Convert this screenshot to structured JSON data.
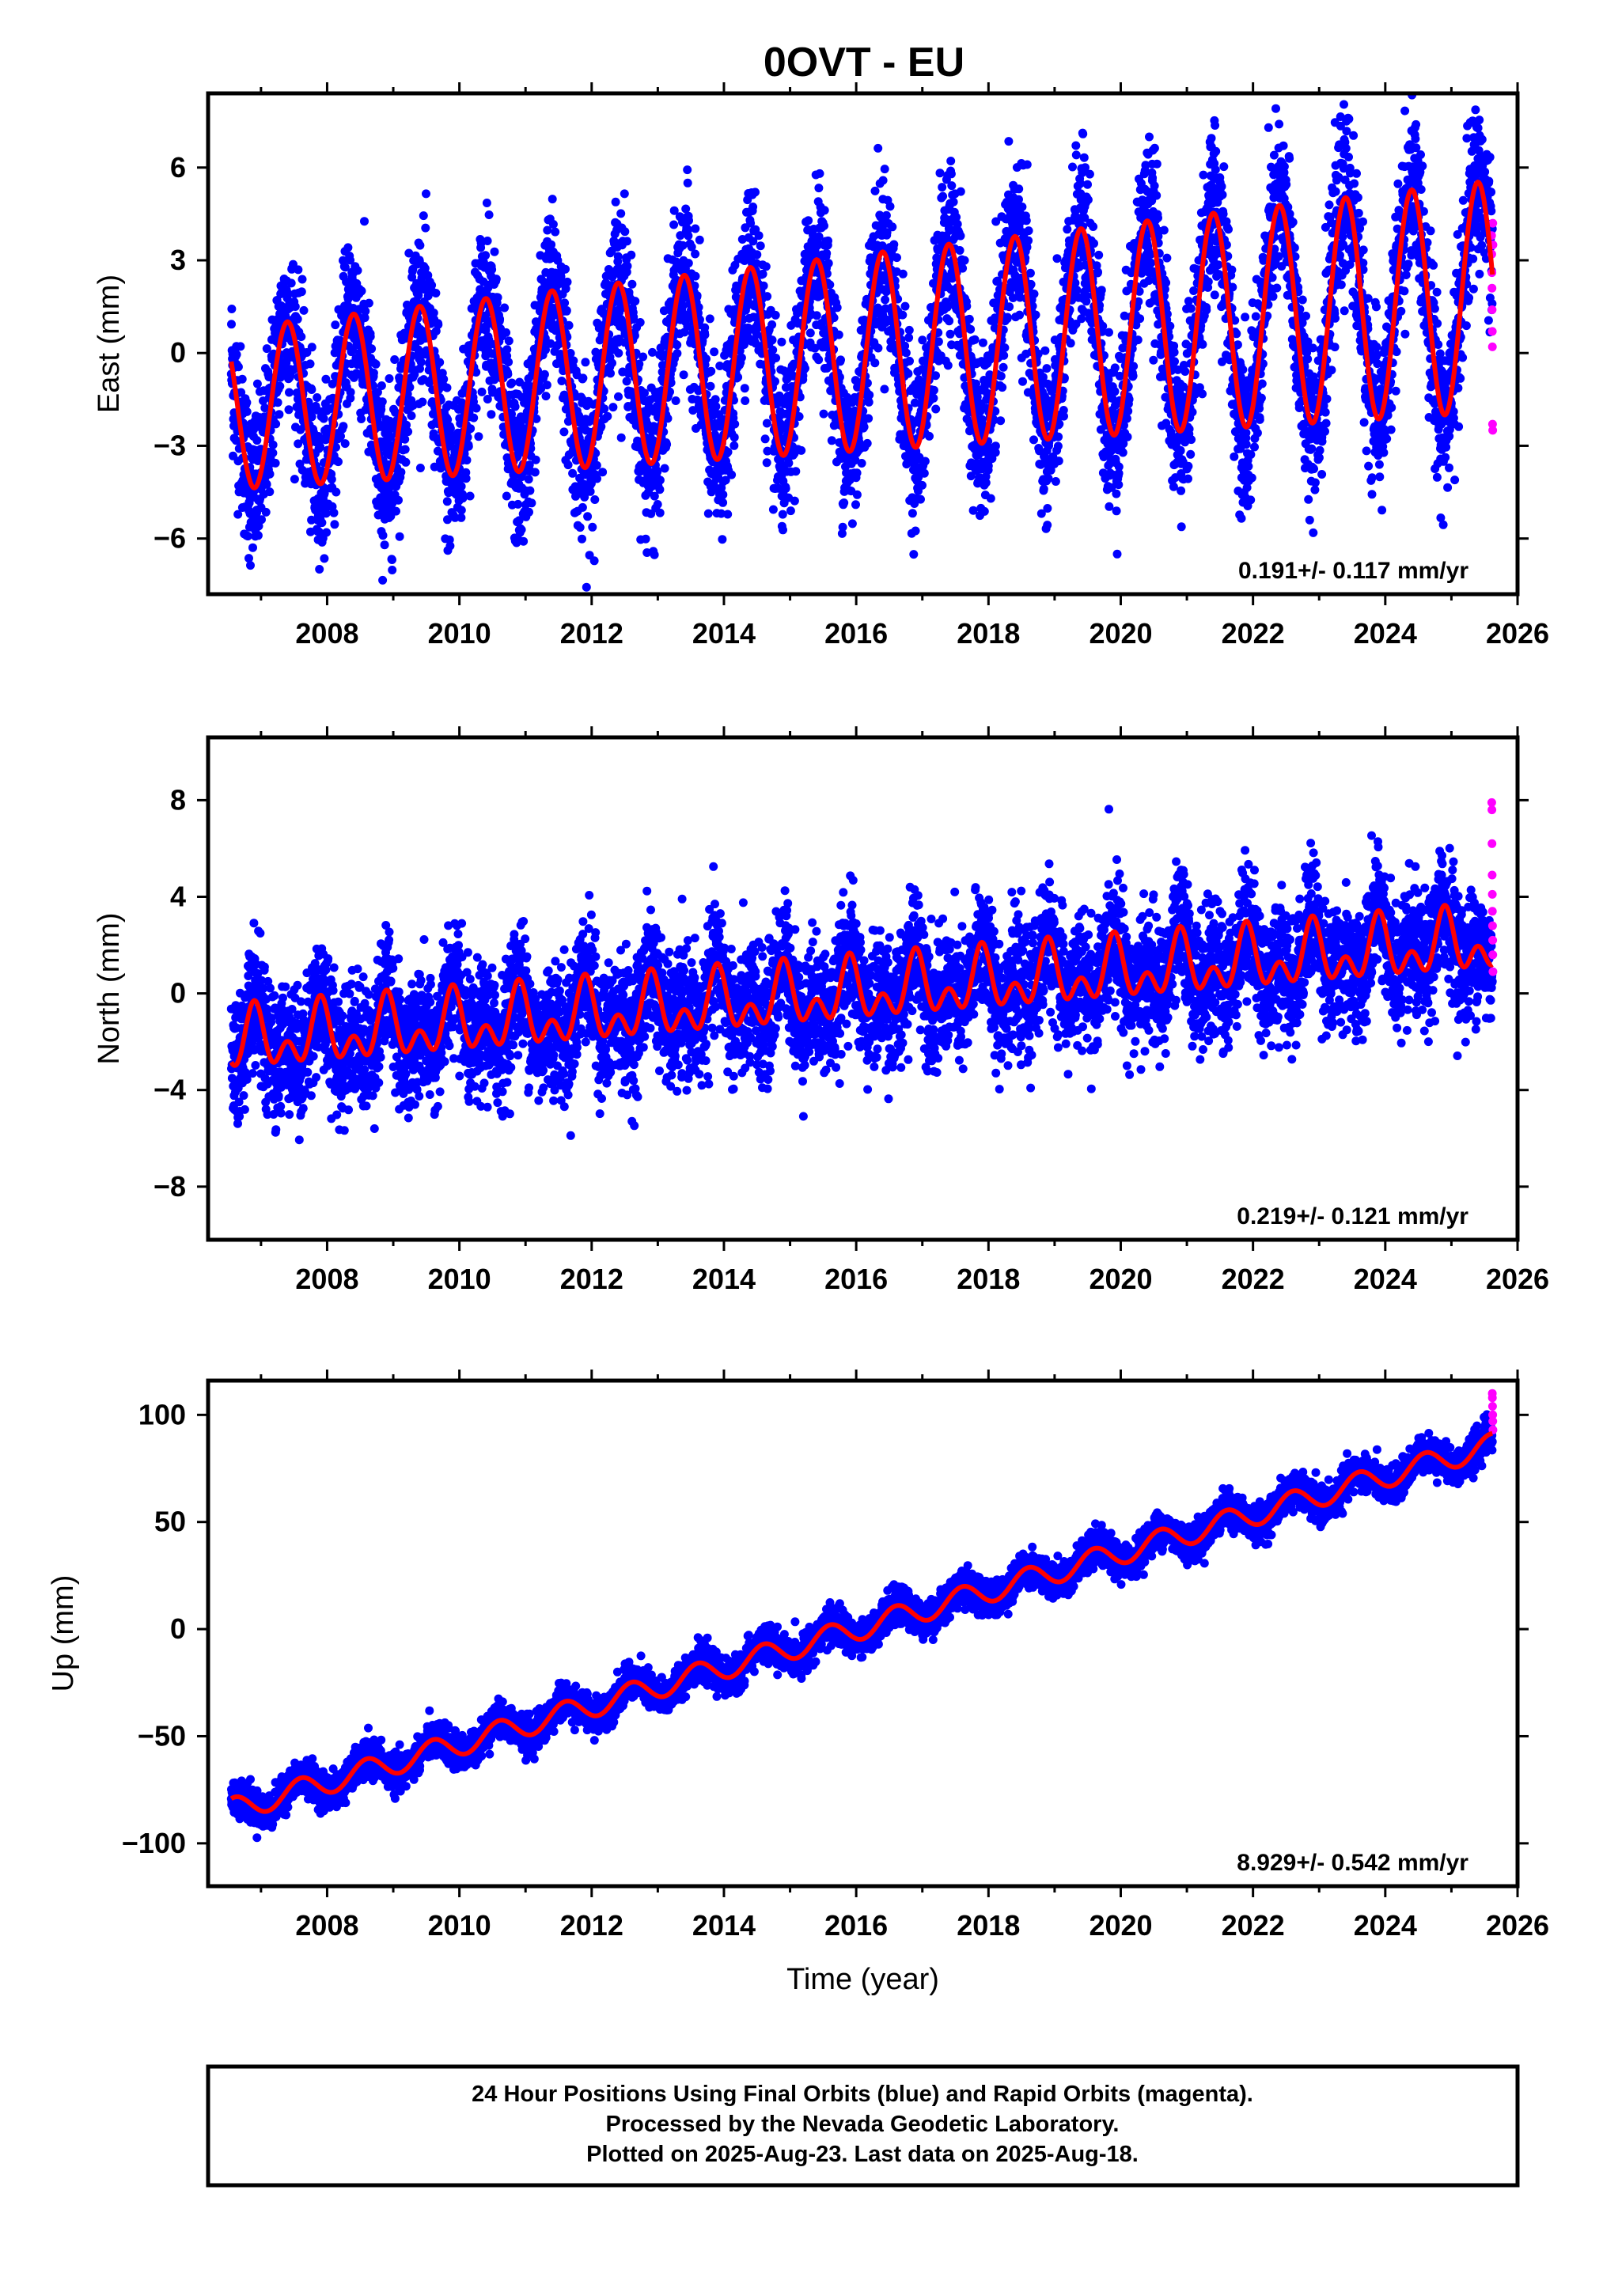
{
  "title": "0OVT - EU",
  "footer": {
    "lines": [
      "24 Hour Positions Using Final Orbits (blue) and Rapid Orbits (magenta).",
      "Processed by the Nevada Geodetic Laboratory.",
      "Plotted on 2025-Aug-23. Last data on 2025-Aug-18."
    ]
  },
  "colors": {
    "final": "#0000ff",
    "rapid": "#ff00ff",
    "model": "#ff0000",
    "frame": "#000000"
  },
  "chart_data": [
    {
      "type": "scatter",
      "panel": "east",
      "ylabel": "East (mm)",
      "xlabel": "",
      "xlim": [
        2006.2,
        2026.0
      ],
      "ylim": [
        -7.8,
        8.4
      ],
      "yticks": [
        -6,
        -3,
        0,
        3,
        6
      ],
      "xticks": [
        2008,
        2010,
        2012,
        2014,
        2016,
        2018,
        2020,
        2022,
        2024,
        2026
      ],
      "rate_label": "0.191+/- 0.117 mm/yr",
      "trend": {
        "rate_mm_per_yr": 0.191,
        "value_at_2016": 0.0
      },
      "seasonal": {
        "annual_amplitude": 2.6,
        "annual_peak": 0.4,
        "amplitude_growth_per_yr": 0.06,
        "semiannual_amplitude": 0.0
      },
      "scatter_sigma": 1.3,
      "data_start": 2006.55,
      "final_end": 2025.62,
      "rapid_end": 2025.63,
      "rapid_values": [
        3.8,
        3.2,
        2.6,
        2.1,
        1.4,
        0.7,
        0.2,
        -2.3,
        -2.5,
        4.2,
        3.5
      ]
    },
    {
      "type": "scatter",
      "panel": "north",
      "ylabel": "North (mm)",
      "xlabel": "",
      "xlim": [
        2006.2,
        2026.0
      ],
      "ylim": [
        -10.2,
        10.6
      ],
      "yticks": [
        -8,
        -4,
        0,
        4,
        8
      ],
      "xticks": [
        2008,
        2010,
        2012,
        2014,
        2016,
        2018,
        2020,
        2022,
        2024,
        2026
      ],
      "rate_label": "0.219+/- 0.121 mm/yr",
      "trend": {
        "rate_mm_per_yr": 0.219,
        "value_at_2016": 0.0
      },
      "seasonal": {
        "annual_amplitude": 0.9,
        "annual_peak": 0.9,
        "amplitude_growth_per_yr": 0.0,
        "semiannual_amplitude": 0.8
      },
      "scatter_sigma": 1.3,
      "data_start": 2006.55,
      "final_end": 2025.62,
      "rapid_end": 2025.63,
      "rapid_values": [
        7.9,
        7.6,
        6.2,
        4.9,
        4.1,
        3.4,
        2.8,
        2.2,
        1.6,
        0.9
      ]
    },
    {
      "type": "scatter",
      "panel": "up",
      "ylabel": "Up (mm)",
      "xlabel": "Time (year)",
      "xlim": [
        2006.2,
        2026.0
      ],
      "ylim": [
        -120,
        116
      ],
      "yticks": [
        -100,
        -50,
        0,
        50,
        100
      ],
      "xticks": [
        2008,
        2010,
        2012,
        2014,
        2016,
        2018,
        2020,
        2022,
        2024,
        2026
      ],
      "rate_label": "8.929+/- 0.542 mm/yr",
      "trend": {
        "rate_mm_per_yr": 8.929,
        "value_at_2016": 0.0
      },
      "seasonal": {
        "annual_amplitude": 5.5,
        "annual_peak": 0.6,
        "amplitude_growth_per_yr": 0.0,
        "semiannual_amplitude": 0.0
      },
      "scatter_sigma": 4.0,
      "data_start": 2006.55,
      "final_end": 2025.62,
      "rapid_end": 2025.63,
      "rapid_values": [
        110,
        108,
        104,
        100,
        97,
        93
      ]
    }
  ]
}
